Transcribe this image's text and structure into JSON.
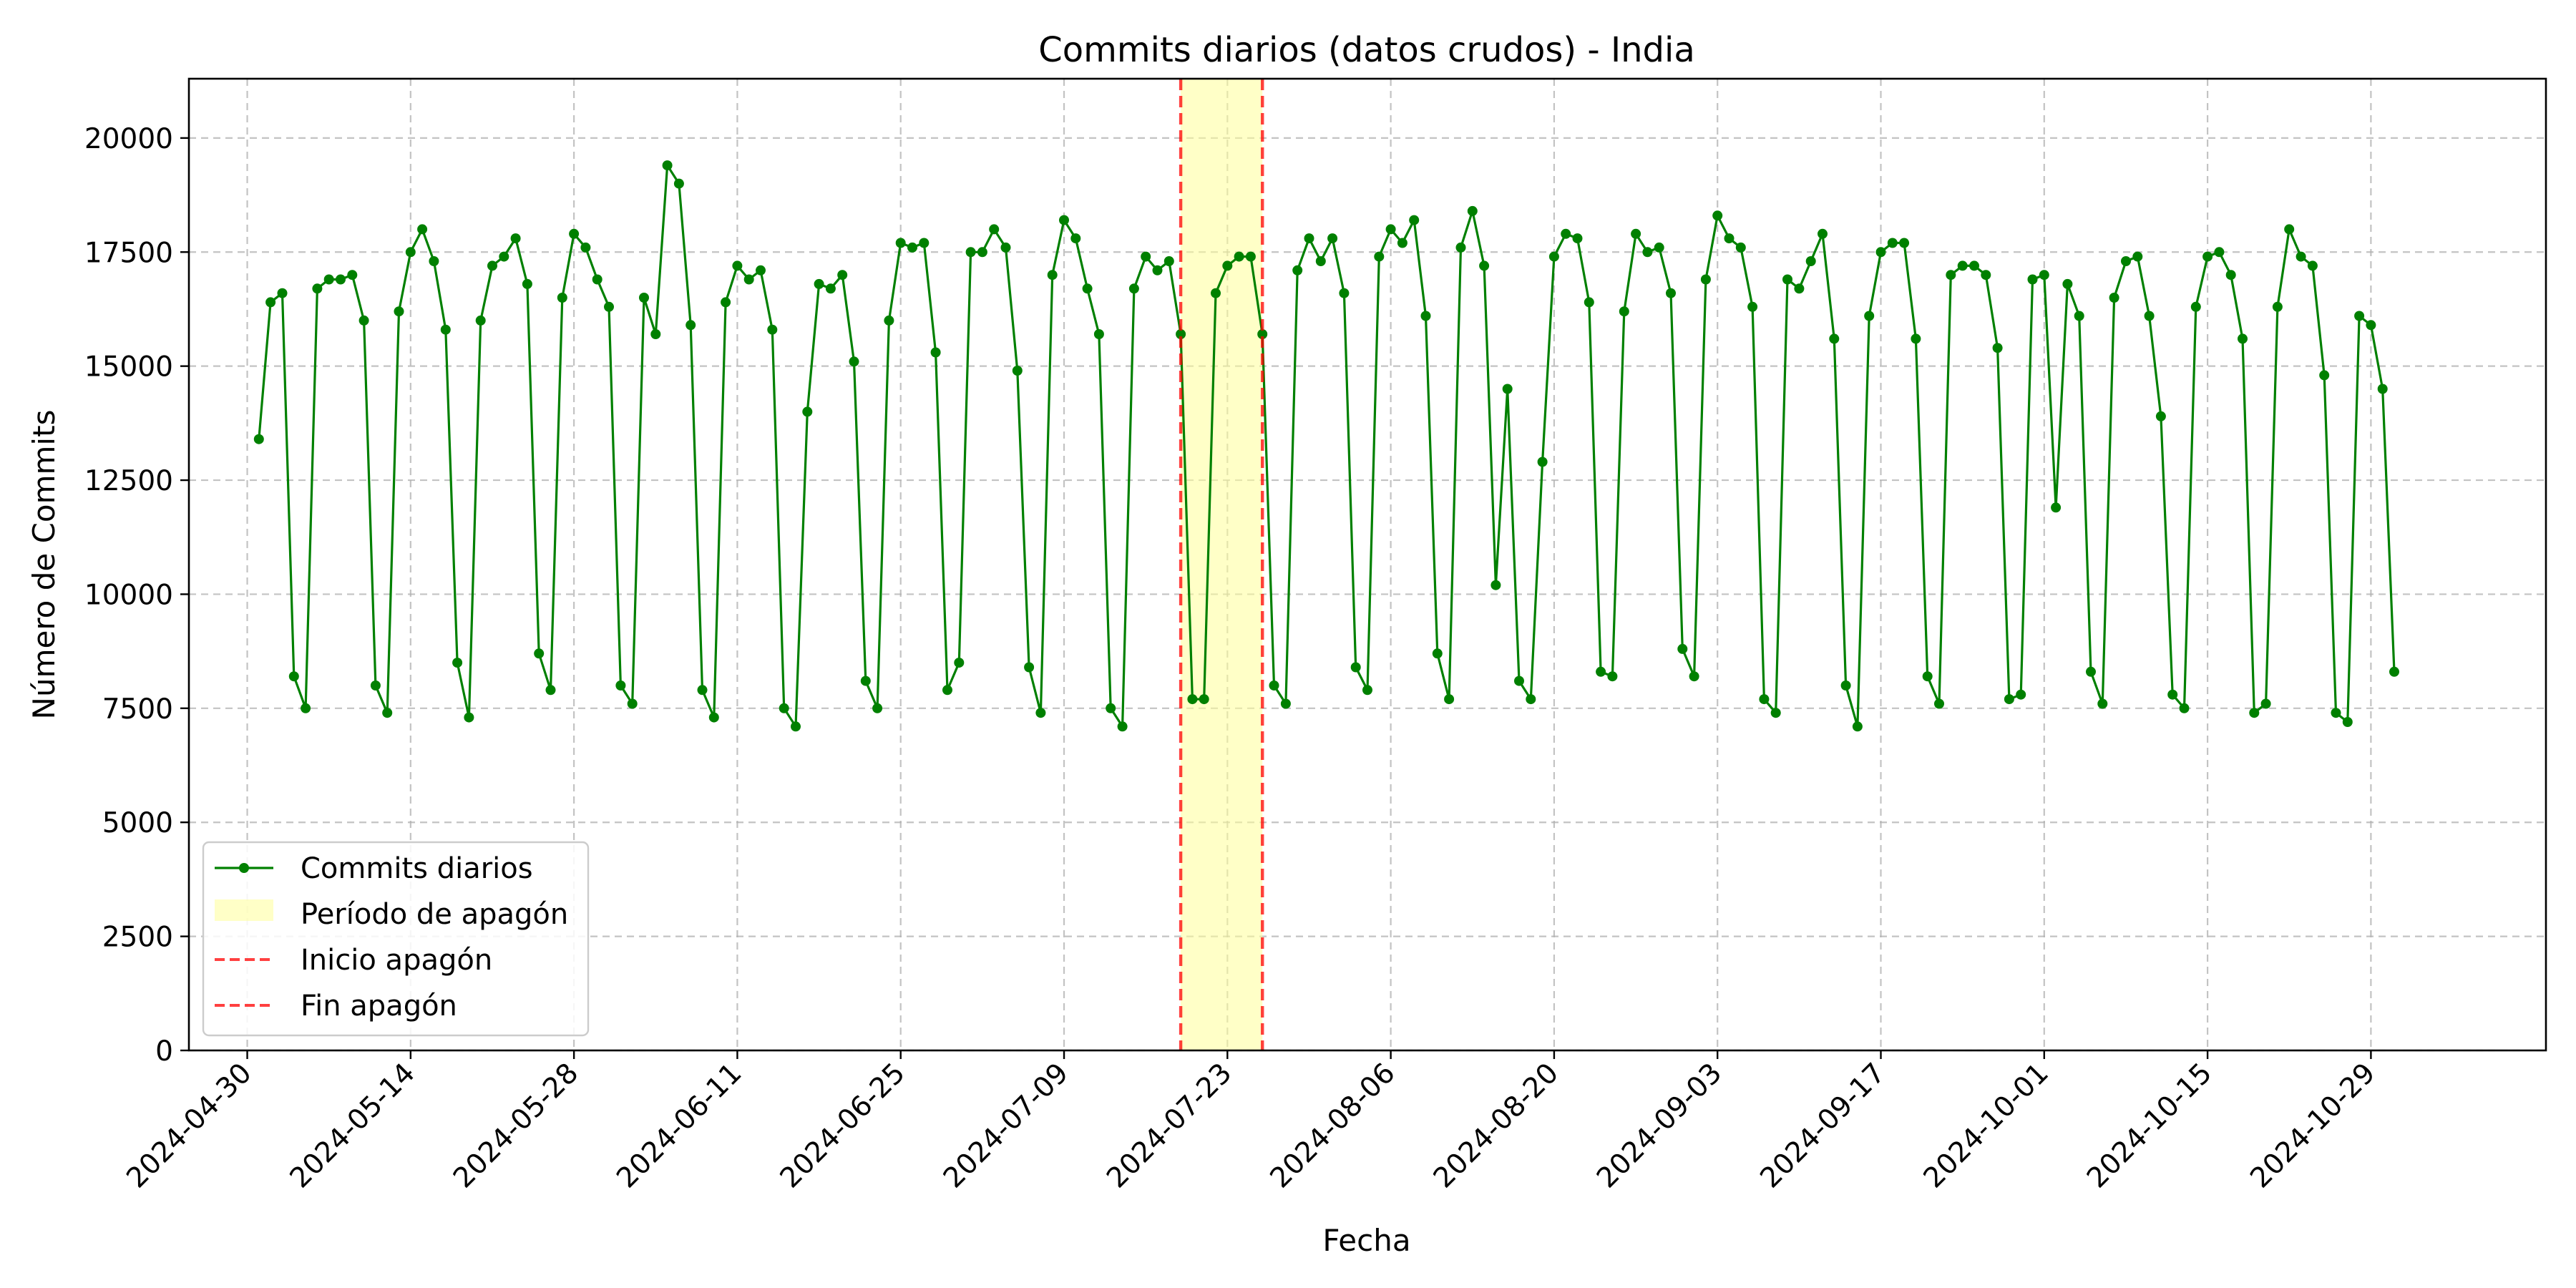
{
  "chart_data": {
    "type": "line",
    "title": "Commits diarios (datos crudos) - India",
    "xlabel": "Fecha",
    "ylabel": "Número de Commits",
    "ylim": [
      0,
      21300
    ],
    "xlim": [
      "2024-04-25",
      "2024-11-13"
    ],
    "y_ticks": [
      0,
      2500,
      5000,
      7500,
      10000,
      12500,
      15000,
      17500,
      20000
    ],
    "x_ticks": [
      "2024-04-30",
      "2024-05-14",
      "2024-05-28",
      "2024-06-11",
      "2024-06-25",
      "2024-07-09",
      "2024-07-23",
      "2024-08-06",
      "2024-08-20",
      "2024-09-03",
      "2024-09-17",
      "2024-10-01",
      "2024-10-15",
      "2024-10-29"
    ],
    "grid": true,
    "legend_position": "lower-left",
    "series": [
      {
        "name": "Commits diarios",
        "color": "#008000",
        "start_date": "2024-05-01",
        "values": [
          13400,
          16400,
          16600,
          8200,
          7500,
          16700,
          16900,
          16900,
          17000,
          16000,
          8000,
          7400,
          16200,
          17500,
          18000,
          17300,
          15800,
          8500,
          7300,
          16000,
          17200,
          17400,
          17800,
          16800,
          8700,
          7900,
          16500,
          17900,
          17600,
          16900,
          16300,
          8000,
          7600,
          16500,
          15700,
          19400,
          19000,
          15900,
          7900,
          7300,
          16400,
          17200,
          16900,
          17100,
          15800,
          7500,
          7100,
          14000,
          16800,
          16700,
          17000,
          15100,
          8100,
          7500,
          16000,
          17700,
          17600,
          17700,
          15300,
          7900,
          8500,
          17500,
          17500,
          18000,
          17600,
          14900,
          8400,
          7400,
          17000,
          18200,
          17800,
          16700,
          15700,
          7500,
          7100,
          16700,
          17400,
          17100,
          17300,
          15700,
          7700,
          7700,
          16600,
          17200,
          17400,
          17400,
          15700,
          8000,
          7600,
          17100,
          17800,
          17300,
          17800,
          16600,
          8400,
          7900,
          17400,
          18000,
          17700,
          18200,
          16100,
          8700,
          7700,
          17600,
          18400,
          17200,
          10200,
          14500,
          8100,
          7700,
          12900,
          17400,
          17900,
          17800,
          16400,
          8300,
          8200,
          16200,
          17900,
          17500,
          17600,
          16600,
          8800,
          8200,
          16900,
          18300,
          17800,
          17600,
          16300,
          7700,
          7400,
          16900,
          16700,
          17300,
          17900,
          15600,
          8000,
          7100,
          16100,
          17500,
          17700,
          17700,
          15600,
          8200,
          7600,
          17000,
          17200,
          17200,
          17000,
          15400,
          7700,
          7800,
          16900,
          17000,
          11900,
          16800,
          16100,
          8300,
          7600,
          16500,
          17300,
          17400,
          16100,
          13900,
          7800,
          7500,
          16300,
          17400,
          17500,
          17000,
          15600,
          7400,
          7600,
          16300,
          18000,
          17400,
          17200,
          14800,
          7400,
          7200,
          16100,
          15900,
          14500,
          8300
        ]
      }
    ],
    "annotations": [
      {
        "type": "span",
        "label": "Período de apagón",
        "start": "2024-07-19",
        "end": "2024-07-26",
        "color": "#ffff99"
      },
      {
        "type": "vline",
        "label": "Inicio apagón",
        "x": "2024-07-19",
        "color": "#ff0000",
        "style": "dashed"
      },
      {
        "type": "vline",
        "label": "Fin apagón",
        "x": "2024-07-26",
        "color": "#ff0000",
        "style": "dashed"
      }
    ],
    "legend": [
      "Commits diarios",
      "Período de apagón",
      "Inicio apagón",
      "Fin apagón"
    ]
  }
}
